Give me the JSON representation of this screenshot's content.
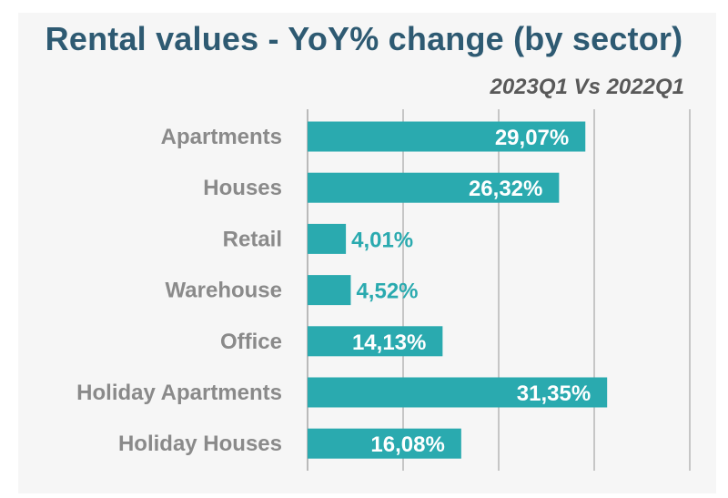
{
  "chart_data": {
    "type": "bar",
    "orientation": "horizontal",
    "title": "Rental values - YoY% change (by sector)",
    "subtitle": "2023Q1 Vs 2022Q1",
    "categories": [
      "Apartments",
      "Houses",
      "Retail",
      "Warehouse",
      "Office",
      "Holiday Apartments",
      "Holiday Houses"
    ],
    "values": [
      29.07,
      26.32,
      4.01,
      4.52,
      14.13,
      31.35,
      16.08
    ],
    "value_labels": [
      "29,07%",
      "26,32%",
      "4,01%",
      "4,52%",
      "14,13%",
      "31,35%",
      "16,08%"
    ],
    "xlim": [
      0,
      40
    ],
    "grid": true,
    "legend": "none",
    "colors": {
      "bar": "#2aaaaf",
      "label_inside": "#ffffff",
      "label_outside": "#2aaaaf",
      "title": "#2e5a72",
      "subtitle": "#595959",
      "category": "#8a8a8a",
      "grid": "#a6a6a6",
      "background": "#f6f6f6"
    }
  }
}
